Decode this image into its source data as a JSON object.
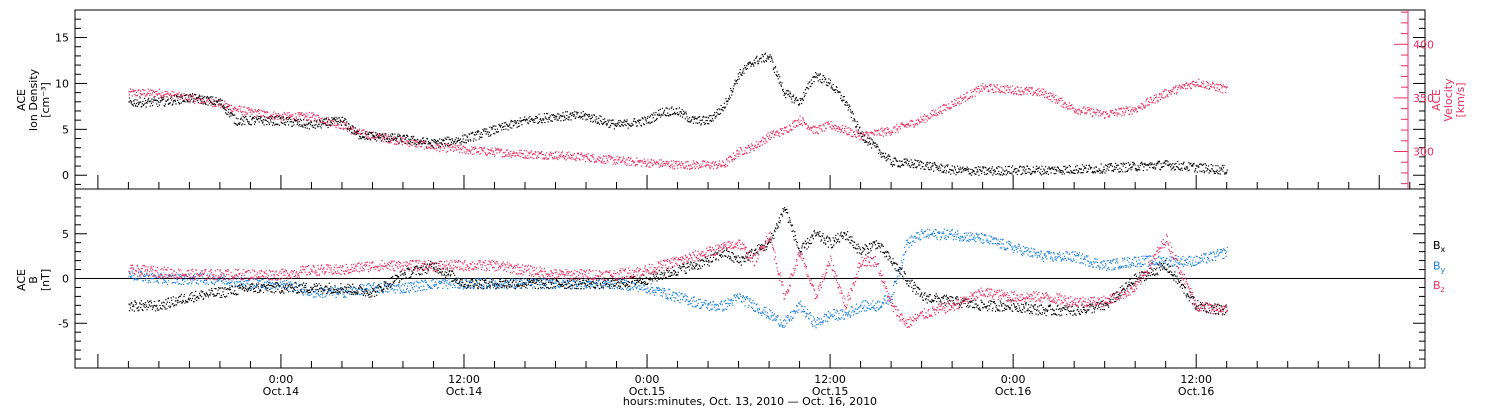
{
  "chart_data": [
    {
      "type": "scatter",
      "panel": "top",
      "ylabel_left": [
        "ACE",
        "Ion Density",
        "[cm⁻³]"
      ],
      "ylabel_right": [
        "ACE",
        "Velocity",
        "[km/s]"
      ],
      "y_left_lim": [
        -1.5,
        18
      ],
      "y_left_ticks": [
        0,
        5,
        10,
        15
      ],
      "y_right_lim": [
        265,
        432
      ],
      "y_right_ticks": [
        300,
        350,
        400
      ],
      "colors": {
        "density": "#000000",
        "velocity": "#e8305f"
      },
      "series": [
        {
          "name": "Ion Density",
          "axis": "left",
          "x": [
            -10,
            -8,
            -6,
            -4,
            -3,
            -2,
            0,
            2,
            4,
            5,
            6,
            8,
            10,
            12,
            14,
            16,
            18,
            20,
            22,
            24,
            25,
            26,
            27,
            28,
            29,
            30,
            31,
            32,
            33,
            34,
            35,
            36,
            37,
            38,
            40,
            42,
            44,
            46,
            48,
            50,
            52,
            54,
            56,
            58,
            60,
            62
          ],
          "y": [
            8,
            8,
            8.5,
            8,
            6,
            6,
            6,
            5.5,
            6,
            4.5,
            4.3,
            4,
            3.5,
            4,
            5,
            6,
            6.5,
            6.5,
            5.5,
            6,
            7,
            7,
            6,
            6,
            7.5,
            11,
            12.5,
            13,
            9,
            8,
            11,
            10,
            8,
            4.5,
            1.5,
            1.2,
            0.6,
            0.5,
            0.6,
            0.6,
            0.7,
            0.8,
            1,
            1.2,
            0.9,
            0.6
          ]
        },
        {
          "name": "Velocity",
          "axis": "right",
          "x": [
            -10,
            -8,
            -6,
            -4,
            -3,
            -2,
            0,
            2,
            4,
            5,
            6,
            8,
            10,
            12,
            14,
            16,
            18,
            20,
            22,
            24,
            25,
            26,
            27,
            28,
            29,
            30,
            31,
            32,
            33,
            34,
            35,
            36,
            37,
            38,
            40,
            42,
            44,
            46,
            48,
            50,
            52,
            54,
            56,
            58,
            60,
            62
          ],
          "y": [
            355,
            355,
            350,
            345,
            340,
            337,
            333,
            333,
            325,
            318,
            315,
            310,
            305,
            302,
            300,
            298,
            297,
            295,
            292,
            290,
            289,
            288,
            288,
            288,
            288,
            300,
            305,
            315,
            320,
            330,
            320,
            325,
            320,
            315,
            320,
            330,
            345,
            360,
            358,
            355,
            340,
            335,
            340,
            355,
            365,
            358
          ]
        }
      ]
    },
    {
      "type": "scatter",
      "panel": "bottom",
      "ylabel_left": [
        "ACE",
        "B",
        "[nT]"
      ],
      "y_lim": [
        -10,
        10
      ],
      "y_ticks": [
        -5,
        0,
        5
      ],
      "xlabel": "hours:minutes, Oct. 13, 2010 — Oct. 16, 2010",
      "x_lim": [
        -13.5,
        75
      ],
      "x_ticks": [
        {
          "x": 0,
          "time": "0:00",
          "date": "Oct.14"
        },
        {
          "x": 12,
          "time": "12:00",
          "date": "Oct.14"
        },
        {
          "x": 24,
          "time": "0:00",
          "date": "Oct.15"
        },
        {
          "x": 36,
          "time": "12:00",
          "date": "Oct.15"
        },
        {
          "x": 48,
          "time": "0:00",
          "date": "Oct.16"
        },
        {
          "x": 60,
          "time": "12:00",
          "date": "Oct.16"
        }
      ],
      "colors": {
        "Bx": "#000000",
        "By": "#1a7fe0",
        "Bz": "#e8305f"
      },
      "legend": [
        {
          "label": "B",
          "sub": "x",
          "color": "#000000"
        },
        {
          "label": "B",
          "sub": "y",
          "color": "#1a7fe0"
        },
        {
          "label": "B",
          "sub": "z",
          "color": "#e8305f"
        }
      ],
      "series": [
        {
          "name": "Bx",
          "x": [
            -10,
            -8,
            -6,
            -4,
            -2,
            0,
            2,
            4,
            6,
            8,
            10,
            12,
            14,
            16,
            18,
            20,
            22,
            24,
            26,
            28,
            29,
            30,
            31,
            32,
            33,
            34,
            35,
            36,
            37,
            38,
            39,
            40,
            41,
            42,
            44,
            46,
            48,
            50,
            52,
            54,
            56,
            58,
            60,
            62
          ],
          "y": [
            -3,
            -3,
            -2,
            -1.5,
            -1,
            -1,
            -1,
            -1,
            -1.5,
            0.5,
            1.5,
            -0.5,
            -0.5,
            -0.5,
            -0.5,
            -0.5,
            -0.5,
            0,
            1,
            2,
            3,
            2,
            3,
            4,
            8,
            3,
            5,
            4,
            5,
            3,
            4,
            2,
            0,
            -2,
            -2.5,
            -3,
            -3,
            -3.5,
            -3.5,
            -3,
            0,
            1.5,
            -3,
            -3.5
          ]
        },
        {
          "name": "By",
          "x": [
            -10,
            -8,
            -6,
            -4,
            -2,
            0,
            2,
            4,
            6,
            8,
            10,
            12,
            14,
            16,
            18,
            20,
            22,
            24,
            26,
            28,
            29,
            30,
            31,
            32,
            33,
            34,
            35,
            36,
            37,
            38,
            39,
            40,
            41,
            42,
            44,
            46,
            48,
            50,
            52,
            54,
            56,
            58,
            60,
            62
          ],
          "y": [
            0.5,
            0,
            0,
            0,
            -0.5,
            -0.5,
            -1.5,
            -1.5,
            -1,
            -1,
            -0.5,
            -0.5,
            -0.5,
            -0.5,
            -0.5,
            -0.5,
            -0.5,
            -1,
            -2,
            -3,
            -3,
            -2,
            -3,
            -4,
            -5,
            -3,
            -5,
            -4,
            -4,
            -3,
            -3,
            -2,
            4,
            5,
            5,
            4.5,
            3.5,
            2.5,
            2.5,
            1.5,
            2,
            2,
            2,
            3
          ]
        },
        {
          "name": "Bz",
          "x": [
            -10,
            -8,
            -6,
            -4,
            -2,
            0,
            2,
            4,
            6,
            8,
            10,
            12,
            14,
            16,
            18,
            20,
            22,
            24,
            26,
            28,
            29,
            30,
            31,
            32,
            33,
            34,
            35,
            36,
            37,
            38,
            39,
            40,
            41,
            42,
            44,
            46,
            48,
            50,
            52,
            54,
            56,
            58,
            60,
            62
          ],
          "y": [
            1,
            0.8,
            0.5,
            0.5,
            0.5,
            0.5,
            1,
            1,
            1.5,
            1.5,
            1.5,
            1.5,
            1.5,
            1,
            0.5,
            0.5,
            0.5,
            1,
            2,
            3,
            3.5,
            4,
            2,
            5,
            -2,
            3,
            -2,
            2,
            -3,
            2,
            2,
            -3,
            -5,
            -4,
            -3,
            -1.5,
            -2,
            -2,
            -2.5,
            -2.5,
            -1,
            4.5,
            -3,
            -3.5
          ]
        }
      ]
    }
  ]
}
